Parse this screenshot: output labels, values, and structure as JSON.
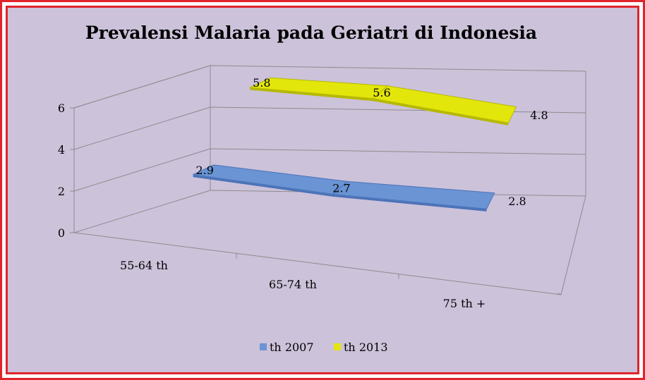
{
  "chart_data": {
    "type": "line",
    "variant": "3d-ribbon",
    "title": "Prevalensi Malaria pada Geriatri di Indonesia",
    "categories": [
      "55-64 th",
      "65-74 th",
      "75 th +"
    ],
    "series": [
      {
        "name": "th 2007",
        "values": [
          2.9,
          2.7,
          2.8
        ],
        "color": "#6a94d4"
      },
      {
        "name": "th 2013",
        "values": [
          5.8,
          5.6,
          4.8
        ],
        "color": "#e3e60a"
      }
    ],
    "y_ticks": [
      "0",
      "2",
      "4",
      "6"
    ],
    "ylim": [
      0,
      6
    ],
    "grid": true,
    "legend": "bottom",
    "border_color": "#e0242c",
    "background_color": "#ccc2da"
  }
}
